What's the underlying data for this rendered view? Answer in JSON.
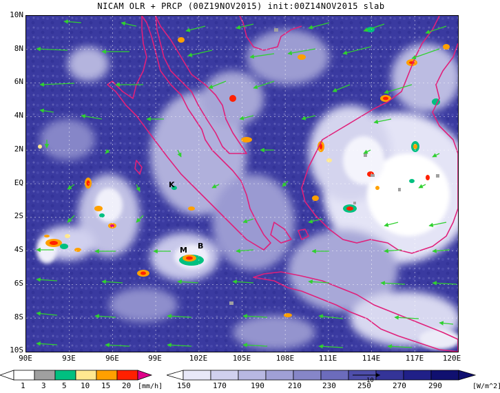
{
  "title": "NICAM OLR + PRCP (00Z19NOV2015) init:00Z14NOV2015 slab",
  "map": {
    "lon_range": [
      90,
      120
    ],
    "lat_range": [
      -10,
      10
    ],
    "lat_labels": [
      "10N",
      "8N",
      "6N",
      "4N",
      "2N",
      "EQ",
      "2S",
      "4S",
      "6S",
      "8S",
      "10S"
    ],
    "lon_labels": [
      "90E",
      "93E",
      "96E",
      "99E",
      "102E",
      "105E",
      "108E",
      "111E",
      "114E",
      "117E",
      "120E"
    ],
    "station_letters": [
      "K",
      "M",
      "B"
    ]
  },
  "precip_colorbar": {
    "labels": [
      "1",
      "3",
      "5",
      "10",
      "15",
      "20"
    ],
    "unit": "[mm/h]",
    "colors": [
      "#ffffff",
      "#a0a0a0",
      "#00c080",
      "#ffe890",
      "#ffa000",
      "#ff2000",
      "#e0008a"
    ]
  },
  "olr_colorbar": {
    "labels": [
      "150",
      "170",
      "190",
      "210",
      "230",
      "250",
      "270",
      "290"
    ],
    "unit": "[W/m^2]",
    "reference_vector": "10",
    "colors": [
      "#ffffff",
      "#e8e8f8",
      "#d0d0ee",
      "#b8b8e2",
      "#a0a0d6",
      "#8686c8",
      "#6c6cbc",
      "#4e4eaa",
      "#343498",
      "#202088",
      "#101070"
    ]
  },
  "colors": {
    "coastline": "#e0207a",
    "wind_vector": "#30d030",
    "olr_background": "#3a3aa0"
  }
}
